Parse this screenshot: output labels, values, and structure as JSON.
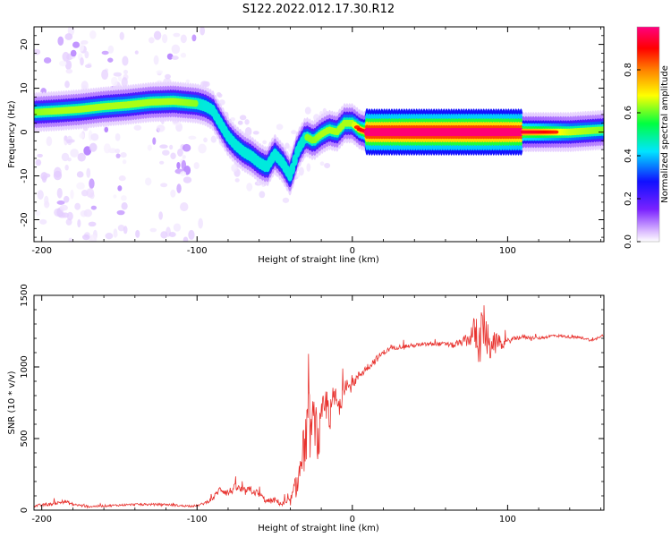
{
  "figure_title": "S122.2022.012.17.30.R12",
  "chart_data": [
    {
      "type": "heatmap",
      "title": "",
      "xlabel": "Height of straight line (km)",
      "ylabel": "Frequency (Hz)",
      "xlim": [
        -205,
        162
      ],
      "ylim": [
        -25,
        24
      ],
      "xticks": [
        -200,
        -100,
        0,
        100
      ],
      "yticks": [
        -20,
        -10,
        0,
        10,
        20
      ],
      "grid": false,
      "colorbar": {
        "label": "Normalized spectral amplitude",
        "range": [
          0,
          1
        ],
        "ticks": [
          "0.0",
          "0.2",
          "0.4",
          "0.6",
          "0.8"
        ],
        "colormap": [
          "#ffffff",
          "#d9b8ff",
          "#7a22ff",
          "#1010ff",
          "#00e5ff",
          "#00ff40",
          "#ffff00",
          "#ff8000",
          "#ff0000",
          "#ff0080"
        ]
      },
      "ridge": {
        "x": [
          -205,
          -190,
          -175,
          -160,
          -145,
          -130,
          -115,
          -100,
          -95,
          -90,
          -85,
          -80,
          -75,
          -70,
          -65,
          -60,
          -55,
          -50,
          -45,
          -40,
          -35,
          -30,
          -25,
          -20,
          -15,
          -10,
          -5,
          0,
          5,
          10,
          30,
          60,
          80,
          90,
          100,
          120,
          140,
          162
        ],
        "y": [
          4.5,
          4.8,
          5.2,
          5.8,
          6.2,
          6.8,
          7.0,
          6.5,
          6.0,
          5.0,
          2.0,
          -1.0,
          -3.0,
          -4.5,
          -5.5,
          -7.0,
          -8.0,
          -5.0,
          -7.0,
          -10.0,
          -4.0,
          -1.0,
          -2.0,
          -0.5,
          0.5,
          0.0,
          2.0,
          2.0,
          0.5,
          0.0,
          0.0,
          0.0,
          0.0,
          0.0,
          0.0,
          0.0,
          0.0,
          0.5
        ],
        "strength": [
          0.55,
          0.6,
          0.6,
          0.6,
          0.6,
          0.6,
          0.6,
          0.55,
          0.5,
          0.5,
          0.5,
          0.5,
          0.5,
          0.5,
          0.5,
          0.5,
          0.5,
          0.5,
          0.5,
          0.5,
          0.5,
          0.55,
          0.55,
          0.6,
          0.6,
          0.6,
          0.6,
          0.6,
          0.85,
          1.0,
          1.0,
          1.0,
          1.0,
          1.0,
          1.0,
          0.9,
          0.65,
          0.55
        ]
      }
    },
    {
      "type": "line",
      "title": "",
      "xlabel": "Height of straight line (km)",
      "ylabel": "SNR (10 * v/v)",
      "xlim": [
        -205,
        162
      ],
      "ylim": [
        0,
        1500
      ],
      "xticks": [
        -200,
        -100,
        0,
        100
      ],
      "yticks": [
        0,
        500,
        1000,
        1500
      ],
      "grid": false,
      "series": [
        {
          "color": "#e8322e",
          "x": [
            -205,
            -195,
            -185,
            -180,
            -170,
            -160,
            -150,
            -140,
            -130,
            -120,
            -110,
            -100,
            -95,
            -90,
            -85,
            -80,
            -75,
            -70,
            -65,
            -60,
            -55,
            -50,
            -45,
            -40,
            -35,
            -30,
            -28,
            -26,
            -24,
            -22,
            -20,
            -18,
            -16,
            -14,
            -12,
            -10,
            -8,
            -6,
            -4,
            -2,
            0,
            5,
            10,
            15,
            20,
            25,
            30,
            40,
            50,
            60,
            65,
            70,
            75,
            78,
            80,
            82,
            84,
            86,
            88,
            90,
            92,
            94,
            96,
            100,
            105,
            110,
            120,
            130,
            140,
            150,
            155,
            160,
            162
          ],
          "y": [
            30,
            40,
            60,
            40,
            25,
            30,
            35,
            40,
            40,
            40,
            30,
            30,
            50,
            80,
            150,
            120,
            160,
            130,
            140,
            110,
            60,
            70,
            40,
            60,
            200,
            500,
            600,
            550,
            650,
            450,
            600,
            700,
            750,
            650,
            800,
            750,
            700,
            850,
            900,
            850,
            880,
            950,
            1000,
            1050,
            1100,
            1130,
            1140,
            1150,
            1160,
            1160,
            1150,
            1170,
            1190,
            1250,
            1200,
            1150,
            1300,
            1250,
            1100,
            1200,
            1150,
            1200,
            1150,
            1180,
            1200,
            1210,
            1200,
            1220,
            1210,
            1200,
            1180,
            1220,
            1220
          ],
          "noise_amplitude": [
            20,
            20,
            25,
            25,
            15,
            15,
            15,
            15,
            15,
            15,
            15,
            15,
            20,
            30,
            50,
            60,
            60,
            60,
            60,
            50,
            40,
            40,
            40,
            60,
            200,
            400,
            500,
            400,
            400,
            300,
            300,
            300,
            250,
            250,
            200,
            200,
            150,
            150,
            120,
            100,
            80,
            60,
            60,
            50,
            40,
            30,
            30,
            30,
            30,
            30,
            40,
            50,
            100,
            200,
            250,
            300,
            350,
            300,
            300,
            200,
            150,
            100,
            60,
            40,
            30,
            30,
            20,
            20,
            20,
            20,
            20,
            20,
            20
          ]
        }
      ]
    }
  ]
}
